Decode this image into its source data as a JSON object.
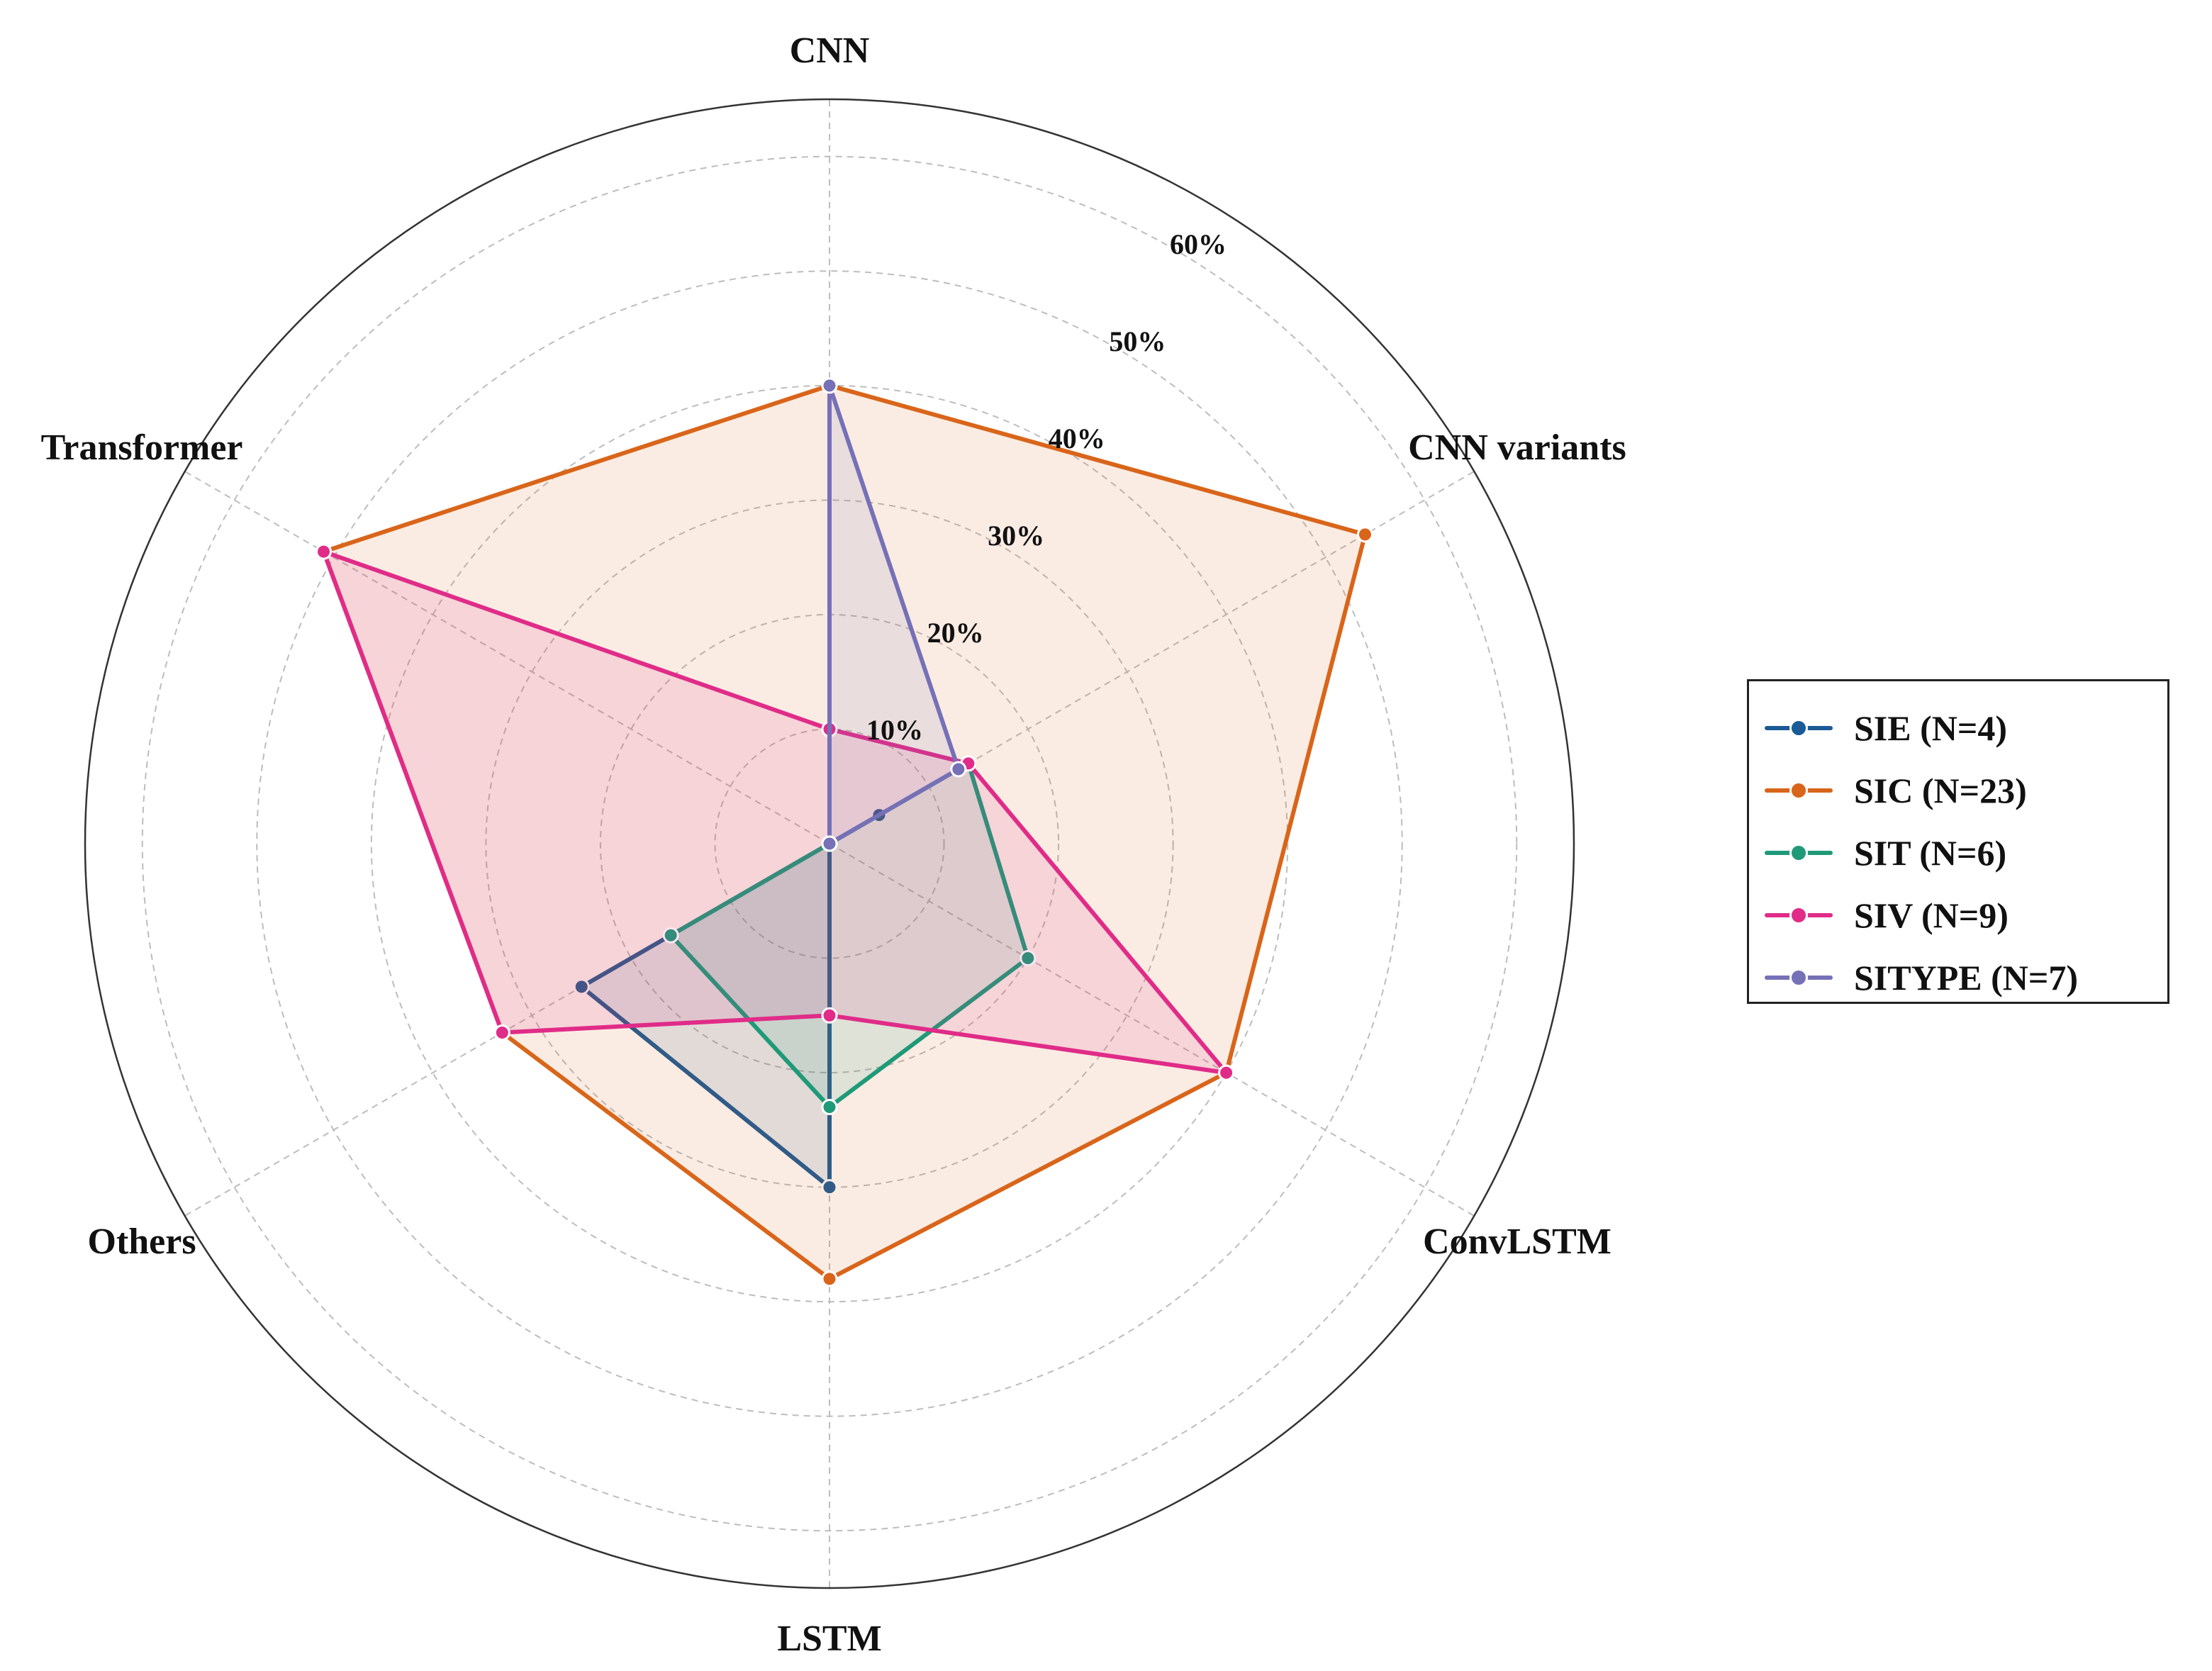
{
  "chart_data": {
    "type": "radar",
    "axes": [
      "CNN",
      "CNN variants",
      "ConvLSTM",
      "LSTM",
      "Others",
      "Transformer"
    ],
    "radial_ticks": [
      10,
      20,
      30,
      40,
      50,
      60
    ],
    "radial_tick_labels": [
      "10%",
      "20%",
      "30%",
      "40%",
      "50%",
      "60%"
    ],
    "radial_max": 65,
    "unit": "%",
    "grid": true,
    "legend_position": "right",
    "series": [
      {
        "name": "SIE (N=4)",
        "color": "#1a5a96",
        "values": [
          0,
          5,
          0,
          30,
          25,
          0
        ],
        "fill": true
      },
      {
        "name": "SIC (N=23)",
        "color": "#d9651a",
        "values": [
          40,
          54,
          40,
          38,
          33,
          51
        ],
        "fill": true
      },
      {
        "name": "SIT (N=6)",
        "color": "#1f9a78",
        "values": [
          0,
          14,
          20,
          23,
          16,
          0
        ],
        "fill": true
      },
      {
        "name": "SIV (N=9)",
        "color": "#e02c88",
        "values": [
          10,
          14,
          40,
          15,
          33,
          51
        ],
        "fill": true
      },
      {
        "name": "SITYPE (N=7)",
        "color": "#7670b7",
        "values": [
          40,
          13,
          0,
          0,
          0,
          0
        ],
        "fill": true
      }
    ]
  }
}
